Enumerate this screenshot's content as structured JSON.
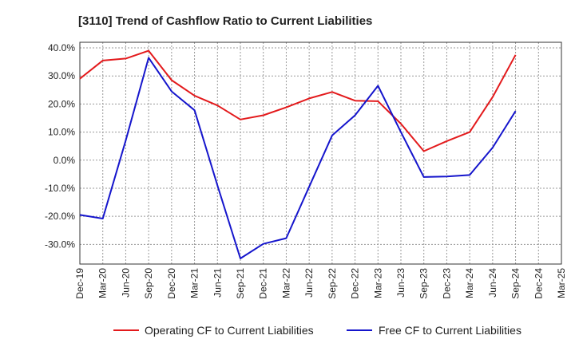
{
  "chart_data": {
    "type": "line",
    "title": "[3110]  Trend of Cashflow Ratio to Current Liabilities",
    "xlabel": "",
    "ylabel": "",
    "categories": [
      "Dec-19",
      "Mar-20",
      "Jun-20",
      "Sep-20",
      "Dec-20",
      "Mar-21",
      "Jun-21",
      "Sep-21",
      "Dec-21",
      "Mar-22",
      "Jun-22",
      "Sep-22",
      "Dec-22",
      "Mar-23",
      "Jun-23",
      "Sep-23",
      "Dec-23",
      "Mar-24",
      "Jun-24",
      "Sep-24",
      "Dec-24",
      "Mar-25"
    ],
    "yticks": [
      "40.0%",
      "30.0%",
      "20.0%",
      "10.0%",
      "0.0%",
      "-10.0%",
      "-20.0%",
      "-30.0%"
    ],
    "ylim": [
      -37,
      42
    ],
    "grid": true,
    "legend_position": "bottom",
    "series": [
      {
        "name": "Operating CF to Current Liabilities",
        "color": "#e31a1c",
        "values": [
          29.0,
          35.5,
          36.2,
          39.0,
          28.5,
          23.0,
          19.5,
          14.5,
          16.0,
          18.8,
          22.0,
          24.3,
          21.2,
          21.0,
          13.0,
          3.2,
          6.8,
          10.0,
          22.5,
          37.5,
          null,
          null
        ]
      },
      {
        "name": "Free CF to Current Liabilities",
        "color": "#1515cc",
        "values": [
          -19.5,
          -20.8,
          7.0,
          36.5,
          24.5,
          17.8,
          -9.0,
          -35.0,
          -29.8,
          -27.8,
          -9.5,
          8.8,
          16.0,
          26.5,
          10.0,
          -6.0,
          -5.8,
          -5.3,
          4.5,
          17.5,
          null,
          null
        ]
      }
    ]
  }
}
